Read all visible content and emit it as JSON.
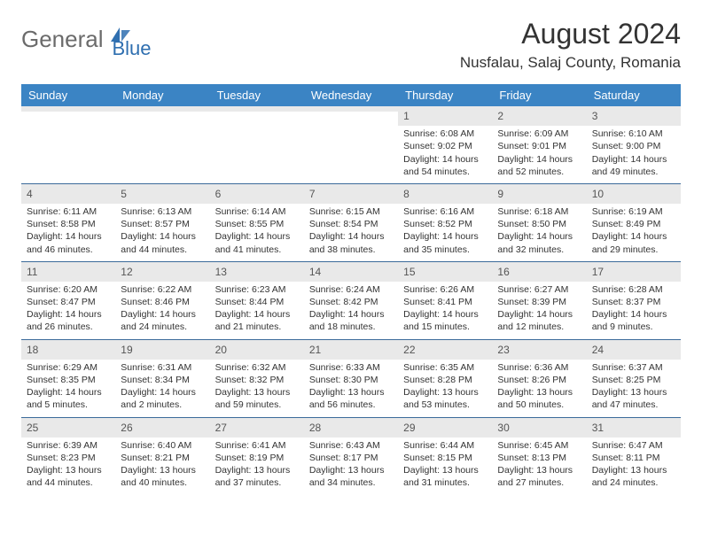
{
  "brand": {
    "part1": "General",
    "part2": "Blue"
  },
  "title": "August 2024",
  "location": "Nusfalau, Salaj County, Romania",
  "colors": {
    "header_bg": "#3b84c4",
    "header_text": "#ffffff",
    "daynum_bg": "#e9e9e9",
    "daynum_text": "#555555",
    "body_text": "#333333",
    "week_border": "#3b6a9a",
    "logo_gray": "#6b6b6b",
    "logo_blue": "#2f6fb0"
  },
  "day_names": [
    "Sunday",
    "Monday",
    "Tuesday",
    "Wednesday",
    "Thursday",
    "Friday",
    "Saturday"
  ],
  "weeks": [
    [
      {
        "day": "",
        "lines": []
      },
      {
        "day": "",
        "lines": []
      },
      {
        "day": "",
        "lines": []
      },
      {
        "day": "",
        "lines": []
      },
      {
        "day": "1",
        "lines": [
          "Sunrise: 6:08 AM",
          "Sunset: 9:02 PM",
          "Daylight: 14 hours and 54 minutes."
        ]
      },
      {
        "day": "2",
        "lines": [
          "Sunrise: 6:09 AM",
          "Sunset: 9:01 PM",
          "Daylight: 14 hours and 52 minutes."
        ]
      },
      {
        "day": "3",
        "lines": [
          "Sunrise: 6:10 AM",
          "Sunset: 9:00 PM",
          "Daylight: 14 hours and 49 minutes."
        ]
      }
    ],
    [
      {
        "day": "4",
        "lines": [
          "Sunrise: 6:11 AM",
          "Sunset: 8:58 PM",
          "Daylight: 14 hours and 46 minutes."
        ]
      },
      {
        "day": "5",
        "lines": [
          "Sunrise: 6:13 AM",
          "Sunset: 8:57 PM",
          "Daylight: 14 hours and 44 minutes."
        ]
      },
      {
        "day": "6",
        "lines": [
          "Sunrise: 6:14 AM",
          "Sunset: 8:55 PM",
          "Daylight: 14 hours and 41 minutes."
        ]
      },
      {
        "day": "7",
        "lines": [
          "Sunrise: 6:15 AM",
          "Sunset: 8:54 PM",
          "Daylight: 14 hours and 38 minutes."
        ]
      },
      {
        "day": "8",
        "lines": [
          "Sunrise: 6:16 AM",
          "Sunset: 8:52 PM",
          "Daylight: 14 hours and 35 minutes."
        ]
      },
      {
        "day": "9",
        "lines": [
          "Sunrise: 6:18 AM",
          "Sunset: 8:50 PM",
          "Daylight: 14 hours and 32 minutes."
        ]
      },
      {
        "day": "10",
        "lines": [
          "Sunrise: 6:19 AM",
          "Sunset: 8:49 PM",
          "Daylight: 14 hours and 29 minutes."
        ]
      }
    ],
    [
      {
        "day": "11",
        "lines": [
          "Sunrise: 6:20 AM",
          "Sunset: 8:47 PM",
          "Daylight: 14 hours and 26 minutes."
        ]
      },
      {
        "day": "12",
        "lines": [
          "Sunrise: 6:22 AM",
          "Sunset: 8:46 PM",
          "Daylight: 14 hours and 24 minutes."
        ]
      },
      {
        "day": "13",
        "lines": [
          "Sunrise: 6:23 AM",
          "Sunset: 8:44 PM",
          "Daylight: 14 hours and 21 minutes."
        ]
      },
      {
        "day": "14",
        "lines": [
          "Sunrise: 6:24 AM",
          "Sunset: 8:42 PM",
          "Daylight: 14 hours and 18 minutes."
        ]
      },
      {
        "day": "15",
        "lines": [
          "Sunrise: 6:26 AM",
          "Sunset: 8:41 PM",
          "Daylight: 14 hours and 15 minutes."
        ]
      },
      {
        "day": "16",
        "lines": [
          "Sunrise: 6:27 AM",
          "Sunset: 8:39 PM",
          "Daylight: 14 hours and 12 minutes."
        ]
      },
      {
        "day": "17",
        "lines": [
          "Sunrise: 6:28 AM",
          "Sunset: 8:37 PM",
          "Daylight: 14 hours and 9 minutes."
        ]
      }
    ],
    [
      {
        "day": "18",
        "lines": [
          "Sunrise: 6:29 AM",
          "Sunset: 8:35 PM",
          "Daylight: 14 hours and 5 minutes."
        ]
      },
      {
        "day": "19",
        "lines": [
          "Sunrise: 6:31 AM",
          "Sunset: 8:34 PM",
          "Daylight: 14 hours and 2 minutes."
        ]
      },
      {
        "day": "20",
        "lines": [
          "Sunrise: 6:32 AM",
          "Sunset: 8:32 PM",
          "Daylight: 13 hours and 59 minutes."
        ]
      },
      {
        "day": "21",
        "lines": [
          "Sunrise: 6:33 AM",
          "Sunset: 8:30 PM",
          "Daylight: 13 hours and 56 minutes."
        ]
      },
      {
        "day": "22",
        "lines": [
          "Sunrise: 6:35 AM",
          "Sunset: 8:28 PM",
          "Daylight: 13 hours and 53 minutes."
        ]
      },
      {
        "day": "23",
        "lines": [
          "Sunrise: 6:36 AM",
          "Sunset: 8:26 PM",
          "Daylight: 13 hours and 50 minutes."
        ]
      },
      {
        "day": "24",
        "lines": [
          "Sunrise: 6:37 AM",
          "Sunset: 8:25 PM",
          "Daylight: 13 hours and 47 minutes."
        ]
      }
    ],
    [
      {
        "day": "25",
        "lines": [
          "Sunrise: 6:39 AM",
          "Sunset: 8:23 PM",
          "Daylight: 13 hours and 44 minutes."
        ]
      },
      {
        "day": "26",
        "lines": [
          "Sunrise: 6:40 AM",
          "Sunset: 8:21 PM",
          "Daylight: 13 hours and 40 minutes."
        ]
      },
      {
        "day": "27",
        "lines": [
          "Sunrise: 6:41 AM",
          "Sunset: 8:19 PM",
          "Daylight: 13 hours and 37 minutes."
        ]
      },
      {
        "day": "28",
        "lines": [
          "Sunrise: 6:43 AM",
          "Sunset: 8:17 PM",
          "Daylight: 13 hours and 34 minutes."
        ]
      },
      {
        "day": "29",
        "lines": [
          "Sunrise: 6:44 AM",
          "Sunset: 8:15 PM",
          "Daylight: 13 hours and 31 minutes."
        ]
      },
      {
        "day": "30",
        "lines": [
          "Sunrise: 6:45 AM",
          "Sunset: 8:13 PM",
          "Daylight: 13 hours and 27 minutes."
        ]
      },
      {
        "day": "31",
        "lines": [
          "Sunrise: 6:47 AM",
          "Sunset: 8:11 PM",
          "Daylight: 13 hours and 24 minutes."
        ]
      }
    ]
  ]
}
